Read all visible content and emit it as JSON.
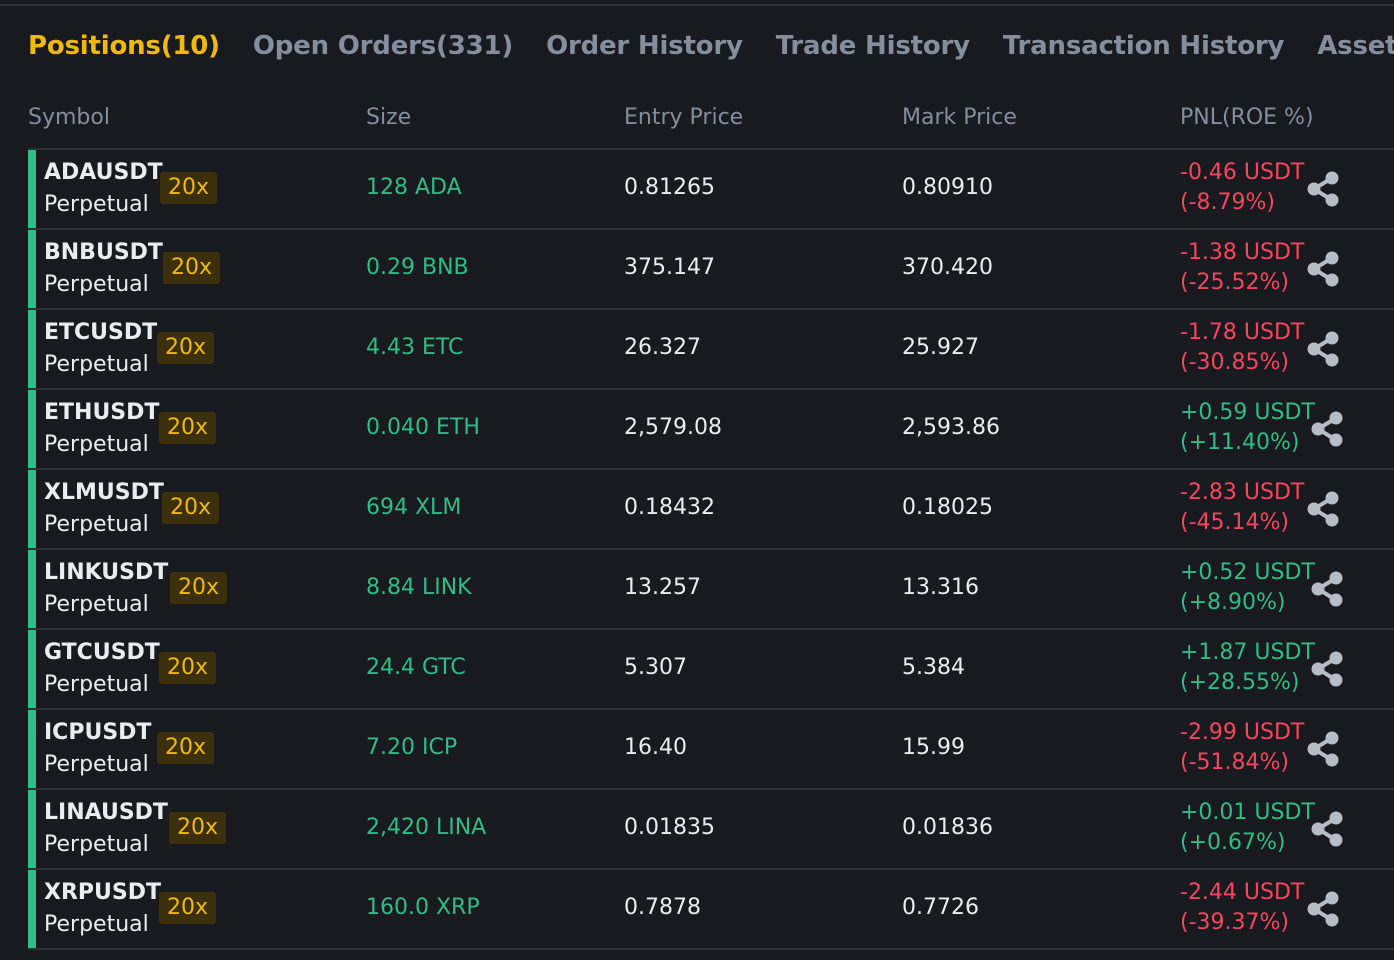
{
  "tabs": [
    "Positions(10)",
    "Open Orders(331)",
    "Order History",
    "Trade History",
    "Transaction History",
    "Assets"
  ],
  "columns": {
    "symbol": "Symbol",
    "size": "Size",
    "entry": "Entry Price",
    "mark": "Mark Price",
    "pnl": "PNL(ROE %)"
  },
  "colors": {
    "positive": "#2ebd85",
    "negative": "#f6465d",
    "accent": "#f0b90b",
    "background": "#181a20"
  },
  "positions": [
    {
      "symbol": "ADAUSDT",
      "type": "Perpetual",
      "leverage": "20x",
      "size": "128 ADA",
      "entry": "0.81265",
      "mark": "0.80910",
      "pnl": "-0.46 USDT",
      "roe": "(-8.79%)",
      "direction": "negative"
    },
    {
      "symbol": "BNBUSDT",
      "type": "Perpetual",
      "leverage": "20x",
      "size": "0.29 BNB",
      "entry": "375.147",
      "mark": "370.420",
      "pnl": "-1.38 USDT",
      "roe": "(-25.52%)",
      "direction": "negative"
    },
    {
      "symbol": "ETCUSDT",
      "type": "Perpetual",
      "leverage": "20x",
      "size": "4.43 ETC",
      "entry": "26.327",
      "mark": "25.927",
      "pnl": "-1.78 USDT",
      "roe": "(-30.85%)",
      "direction": "negative"
    },
    {
      "symbol": "ETHUSDT",
      "type": "Perpetual",
      "leverage": "20x",
      "size": "0.040 ETH",
      "entry": "2,579.08",
      "mark": "2,593.86",
      "pnl": "+0.59 USDT",
      "roe": "(+11.40%)",
      "direction": "positive"
    },
    {
      "symbol": "XLMUSDT",
      "type": "Perpetual",
      "leverage": "20x",
      "size": "694 XLM",
      "entry": "0.18432",
      "mark": "0.18025",
      "pnl": "-2.83 USDT",
      "roe": "(-45.14%)",
      "direction": "negative"
    },
    {
      "symbol": "LINKUSDT",
      "type": "Perpetual",
      "leverage": "20x",
      "size": "8.84 LINK",
      "entry": "13.257",
      "mark": "13.316",
      "pnl": "+0.52 USDT",
      "roe": "(+8.90%)",
      "direction": "positive"
    },
    {
      "symbol": "GTCUSDT",
      "type": "Perpetual",
      "leverage": "20x",
      "size": "24.4 GTC",
      "entry": "5.307",
      "mark": "5.384",
      "pnl": "+1.87 USDT",
      "roe": "(+28.55%)",
      "direction": "positive"
    },
    {
      "symbol": "ICPUSDT",
      "type": "Perpetual",
      "leverage": "20x",
      "size": "7.20 ICP",
      "entry": "16.40",
      "mark": "15.99",
      "pnl": "-2.99 USDT",
      "roe": "(-51.84%)",
      "direction": "negative"
    },
    {
      "symbol": "LINAUSDT",
      "type": "Perpetual",
      "leverage": "20x",
      "size": "2,420 LINA",
      "entry": "0.01835",
      "mark": "0.01836",
      "pnl": "+0.01 USDT",
      "roe": "(+0.67%)",
      "direction": "positive"
    },
    {
      "symbol": "XRPUSDT",
      "type": "Perpetual",
      "leverage": "20x",
      "size": "160.0 XRP",
      "entry": "0.7878",
      "mark": "0.7726",
      "pnl": "-2.44 USDT",
      "roe": "(-39.37%)",
      "direction": "negative"
    }
  ]
}
